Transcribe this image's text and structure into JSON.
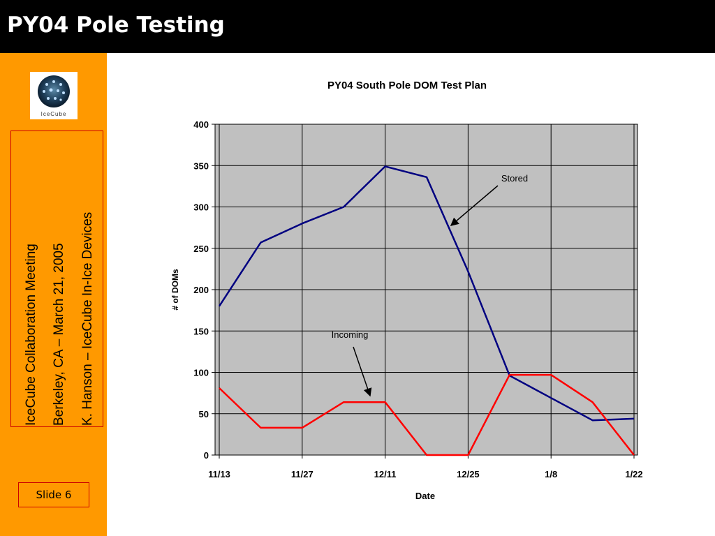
{
  "slide": {
    "title": "PY04 Pole Testing",
    "logo_text": "IceCube",
    "sidebar_lines": [
      "IceCube Collaboration Meeting",
      "Berkeley, CA – March 21, 2005",
      "K. Hanson – IceCube In-Ice Devices"
    ],
    "slide_label": "Slide 6"
  },
  "colors": {
    "title_bar": "#000000",
    "sidebar": "#ff9900",
    "box_border": "#cc0000",
    "plot_background": "#c0c0c0",
    "stored": "#000080",
    "incoming": "#ff0000"
  },
  "chart_data": {
    "type": "line",
    "title": "PY04 South Pole DOM Test Plan",
    "xlabel": "Date",
    "ylabel": "# of DOMs",
    "ylim": [
      0,
      400
    ],
    "yticks": [
      0,
      50,
      100,
      150,
      200,
      250,
      300,
      350,
      400
    ],
    "xticks": [
      "11/13",
      "11/27",
      "12/11",
      "12/25",
      "1/8",
      "1/22"
    ],
    "grid": true,
    "x": [
      "11/13",
      "11/20",
      "11/27",
      "12/4",
      "12/11",
      "12/18",
      "12/25",
      "1/1",
      "1/8",
      "1/15",
      "1/22"
    ],
    "series": [
      {
        "name": "Stored",
        "values": [
          180,
          257,
          280,
          300,
          349,
          336,
          222,
          96,
          69,
          42,
          44
        ]
      },
      {
        "name": "Incoming",
        "values": [
          81,
          33,
          33,
          64,
          64,
          0,
          0,
          97,
          97,
          64,
          0
        ]
      }
    ],
    "annotations": [
      "Stored",
      "Incoming"
    ]
  }
}
